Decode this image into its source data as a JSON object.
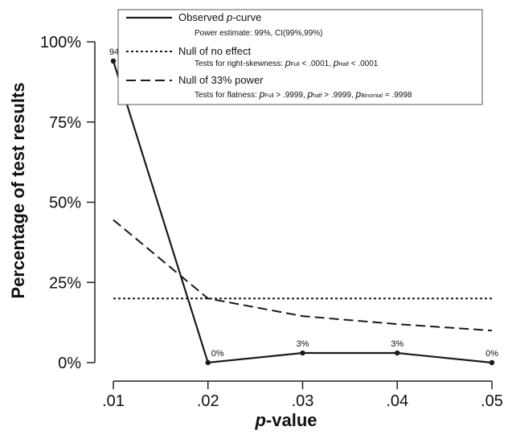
{
  "chart_data": {
    "type": "line",
    "x": [
      ".01",
      ".02",
      ".03",
      ".04",
      ".05"
    ],
    "x_values": [
      0.01,
      0.02,
      0.03,
      0.04,
      0.05
    ],
    "xlim": [
      0.01,
      0.05
    ],
    "ylim": [
      0,
      100
    ],
    "y_ticks": [
      "0%",
      "25%",
      "50%",
      "75%",
      "100%"
    ],
    "y_tick_values": [
      0,
      25,
      50,
      75,
      100
    ],
    "xlabel_italic": "p",
    "xlabel_rest": "-value",
    "ylabel": "Percentage of test results",
    "grid": false,
    "legend_position": "top",
    "series": [
      {
        "name_italic": "p",
        "name_prefix": "Observed ",
        "name_suffix": "-curve",
        "style": "solid",
        "markers": true,
        "values": [
          94,
          0,
          3,
          3,
          0
        ],
        "labels": [
          "94%",
          "0%",
          "3%",
          "3%",
          "0%"
        ],
        "legend_sub": "Power estimate: 99%, CI(99%,99%)"
      },
      {
        "name": "Null of no effect",
        "style": "dotted",
        "values": [
          20,
          20,
          20,
          20,
          20
        ],
        "legend_sub_parts": [
          {
            "t": "Tests for right-skewness: "
          },
          {
            "t": "p",
            "i": true
          },
          {
            "t": "Full",
            "sub": true
          },
          {
            "t": " < .0001,  "
          },
          {
            "t": "p",
            "i": true
          },
          {
            "t": "Half",
            "sub": true
          },
          {
            "t": " < .0001"
          }
        ]
      },
      {
        "name": "Null of 33% power",
        "style": "dashed",
        "values": [
          44.5,
          20,
          14.5,
          12,
          10
        ],
        "legend_sub_parts": [
          {
            "t": "Tests for flatness: "
          },
          {
            "t": "p",
            "i": true
          },
          {
            "t": "Full",
            "sub": true
          },
          {
            "t": " > .9999,  "
          },
          {
            "t": "p",
            "i": true
          },
          {
            "t": "half",
            "sub": true
          },
          {
            "t": " > .9999,  "
          },
          {
            "t": "p",
            "i": true
          },
          {
            "t": "Binomial",
            "sub": true
          },
          {
            "t": " = .9998"
          }
        ]
      }
    ]
  }
}
